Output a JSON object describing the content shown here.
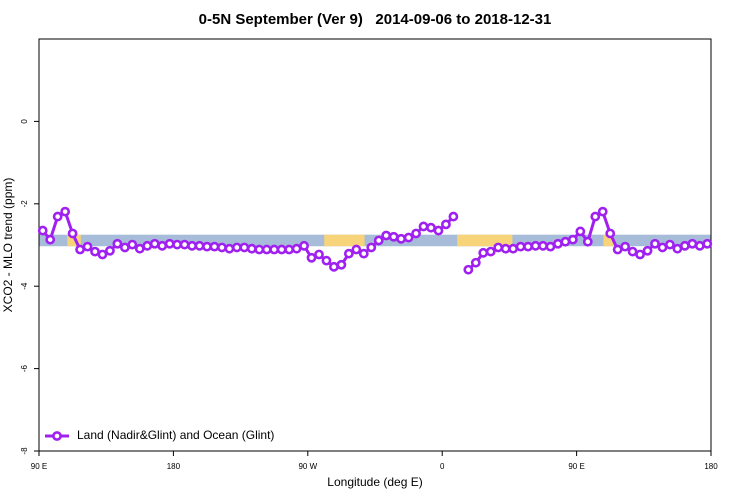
{
  "chart_data": {
    "type": "line",
    "title": "0-5N September (Ver 9)   2014-09-06 to 2018-12-31",
    "xlabel": "Longitude (deg E)",
    "ylabel": "XCO2 - MLO trend (ppm)",
    "xlim": [
      90,
      540
    ],
    "xticks": [
      {
        "value": 90,
        "label": "90 E"
      },
      {
        "value": 180,
        "label": "180"
      },
      {
        "value": 270,
        "label": "90 W"
      },
      {
        "value": 360,
        "label": "0"
      },
      {
        "value": 450,
        "label": "90 E"
      },
      {
        "value": 540,
        "label": "180"
      }
    ],
    "ylim": [
      -8,
      2
    ],
    "yticks": [
      0,
      -2,
      -4,
      -6,
      -8
    ],
    "legend": "bottom-left",
    "band_ylim": [
      -3.03,
      -2.75
    ],
    "ocean_color": "#a7bcd8",
    "land_color": "#f7d47a",
    "land_lon": [
      [
        109,
        118
      ],
      [
        281,
        308
      ],
      [
        370,
        407
      ],
      [
        468,
        475
      ]
    ],
    "x": [
      92.5,
      97.5,
      102.5,
      107.5,
      112.5,
      117.5,
      122.5,
      127.5,
      132.5,
      137.5,
      142.5,
      147.5,
      152.5,
      157.5,
      162.5,
      167.5,
      172.5,
      177.5,
      182.5,
      187.5,
      192.5,
      197.5,
      202.5,
      207.5,
      212.5,
      217.5,
      222.5,
      227.5,
      232.5,
      237.5,
      242.5,
      247.5,
      252.5,
      257.5,
      262.5,
      267.5,
      272.5,
      277.5,
      282.5,
      287.5,
      292.5,
      297.5,
      302.5,
      307.5,
      312.5,
      317.5,
      322.5,
      327.5,
      332.5,
      337.5,
      342.5,
      347.5,
      352.5,
      357.5,
      362.5,
      367.5,
      372.5,
      377.5,
      382.5,
      387.5,
      392.5,
      397.5,
      402.5,
      407.5,
      412.5,
      417.5,
      422.5,
      427.5,
      432.5,
      437.5,
      442.5,
      447.5,
      452.5,
      457.5,
      462.5,
      467.5,
      472.5,
      477.5,
      482.5,
      487.5,
      492.5,
      497.5,
      502.5,
      507.5,
      512.5,
      517.5,
      522.5,
      527.5,
      532.5,
      537.5
    ],
    "series": [
      {
        "name": "Land (Nadir&Glint) and Ocean (Glint)",
        "color": "#a020f0",
        "values": [
          -2.65,
          -2.87,
          -2.31,
          -2.19,
          -2.72,
          -3.11,
          -3.04,
          -3.16,
          -3.23,
          -3.14,
          -2.97,
          -3.06,
          -2.99,
          -3.09,
          -3.02,
          -2.97,
          -3.02,
          -2.97,
          -2.99,
          -2.99,
          -3.02,
          -3.02,
          -3.04,
          -3.04,
          -3.06,
          -3.09,
          -3.06,
          -3.06,
          -3.09,
          -3.11,
          -3.11,
          -3.11,
          -3.11,
          -3.11,
          -3.09,
          -3.02,
          -3.31,
          -3.23,
          -3.38,
          -3.53,
          -3.48,
          -3.21,
          -3.11,
          -3.21,
          -3.06,
          -2.89,
          -2.77,
          -2.8,
          -2.85,
          -2.82,
          -2.72,
          -2.55,
          -2.58,
          -2.65,
          -2.5,
          -2.31,
          null,
          -3.6,
          -3.43,
          -3.19,
          -3.16,
          -3.06,
          -3.09,
          -3.09,
          -3.04,
          -3.04,
          -3.02,
          -3.02,
          -3.04,
          -2.97,
          -2.92,
          -2.87,
          -2.67,
          -2.92,
          -2.31,
          -2.19,
          -2.72,
          -3.11,
          -3.04,
          -3.16,
          -3.23,
          -3.14,
          -2.97,
          -3.06,
          -2.99,
          -3.09,
          -3.02,
          -2.97,
          -3.02,
          -2.97
        ]
      }
    ]
  }
}
